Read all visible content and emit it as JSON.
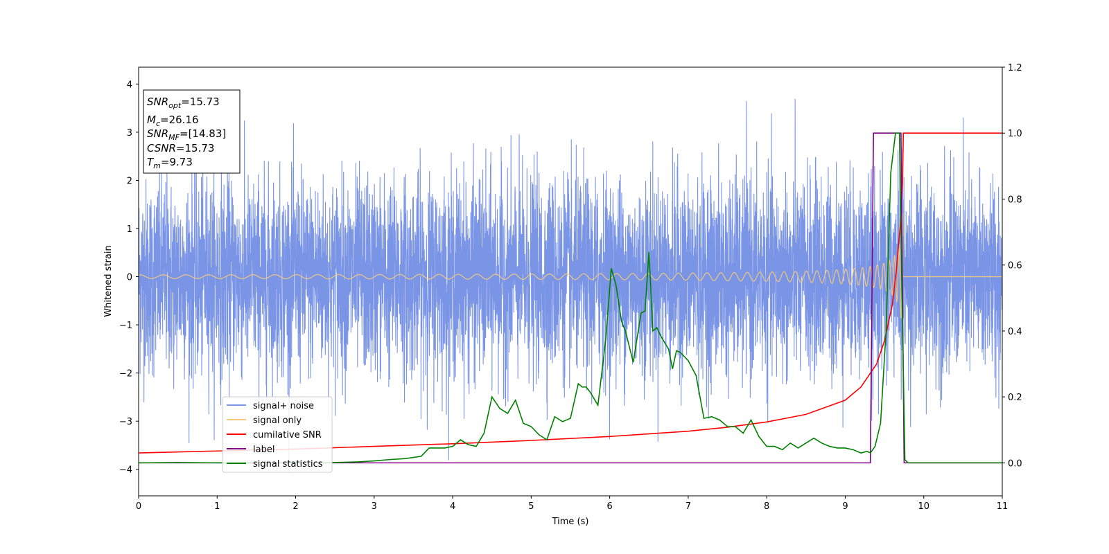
{
  "chart_data": {
    "type": "line",
    "xlabel": "Time (s)",
    "ylabel": "Whitened strain",
    "xlim": [
      0,
      11
    ],
    "ylim": [
      -4.55,
      4.35
    ],
    "y2lim": [
      -0.1,
      1.2
    ],
    "x_ticks": [
      0,
      1,
      2,
      3,
      4,
      5,
      6,
      7,
      8,
      9,
      10,
      11
    ],
    "y_ticks": [
      -4,
      -3,
      -2,
      -1,
      0,
      1,
      2,
      3,
      4
    ],
    "y2_ticks": [
      0.0,
      0.2,
      0.4,
      0.6,
      0.8,
      1.0,
      1.2
    ],
    "legend_position": "lower-left",
    "info_box": {
      "snr_opt": {
        "main": "SNR",
        "sub": "opt",
        "value": "=15.73"
      },
      "mc": {
        "main": "M",
        "sub": "c",
        "value": "=26.16"
      },
      "snr_mf": {
        "main": "SNR",
        "sub": "MF",
        "value": "=[14.83]"
      },
      "csnr": {
        "main": "CSNR",
        "value": "=15.73"
      },
      "tm": {
        "main": "T",
        "sub": "m",
        "value": "=9.73"
      }
    },
    "series": [
      {
        "name": "signal+ noise",
        "color": "#7a94e6",
        "axis": "left",
        "kind": "noise",
        "noise_std": 1.0,
        "signal_added": true
      },
      {
        "name": "signal only",
        "color": "#f5c97a",
        "axis": "left",
        "kind": "chirp",
        "merger_time": 9.73,
        "peak_amplitude": 1.5
      },
      {
        "name": "cumilative SNR",
        "color": "#ff0000",
        "axis": "right",
        "kind": "line",
        "x": [
          0,
          1,
          2,
          3,
          4,
          5,
          6,
          7,
          7.5,
          8,
          8.5,
          9,
          9.2,
          9.4,
          9.5,
          9.6,
          9.65,
          9.7,
          9.73,
          9.74,
          11
        ],
        "y": [
          0.03,
          0.036,
          0.042,
          0.05,
          0.058,
          0.068,
          0.08,
          0.096,
          0.108,
          0.124,
          0.147,
          0.19,
          0.23,
          0.3,
          0.37,
          0.48,
          0.58,
          0.72,
          0.85,
          1.0,
          1.0
        ]
      },
      {
        "name": "label",
        "color": "#800080",
        "axis": "right",
        "kind": "line",
        "x": [
          0,
          9.32,
          9.36,
          9.71,
          9.75,
          11
        ],
        "y": [
          0,
          0,
          1,
          1,
          0,
          0
        ]
      },
      {
        "name": "signal statistics",
        "color": "#008000",
        "axis": "right",
        "kind": "line",
        "x": [
          0,
          0.5,
          1,
          1.5,
          2,
          2.5,
          2.8,
          3,
          3.2,
          3.4,
          3.6,
          3.7,
          3.9,
          4,
          4.1,
          4.2,
          4.3,
          4.4,
          4.5,
          4.6,
          4.7,
          4.8,
          4.9,
          5,
          5.1,
          5.2,
          5.3,
          5.4,
          5.5,
          5.6,
          5.65,
          5.7,
          5.75,
          5.85,
          5.95,
          6.02,
          6.08,
          6.15,
          6.2,
          6.3,
          6.4,
          6.45,
          6.5,
          6.55,
          6.6,
          6.65,
          6.75,
          6.8,
          6.85,
          6.9,
          7,
          7.1,
          7.2,
          7.3,
          7.4,
          7.5,
          7.6,
          7.7,
          7.8,
          7.9,
          8,
          8.1,
          8.2,
          8.3,
          8.4,
          8.5,
          8.6,
          8.7,
          8.8,
          8.9,
          9,
          9.1,
          9.2,
          9.28,
          9.32,
          9.38,
          9.45,
          9.52,
          9.58,
          9.64,
          9.69,
          9.72,
          9.76,
          9.8,
          11
        ],
        "y": [
          0.0,
          0.001,
          0.0,
          0.001,
          0.0,
          0.001,
          0.003,
          0.006,
          0.01,
          0.013,
          0.02,
          0.045,
          0.045,
          0.05,
          0.07,
          0.055,
          0.05,
          0.09,
          0.2,
          0.165,
          0.15,
          0.19,
          0.12,
          0.11,
          0.085,
          0.07,
          0.14,
          0.125,
          0.135,
          0.24,
          0.23,
          0.23,
          0.215,
          0.175,
          0.375,
          0.59,
          0.54,
          0.43,
          0.4,
          0.305,
          0.455,
          0.46,
          0.64,
          0.4,
          0.41,
          0.385,
          0.345,
          0.285,
          0.34,
          0.335,
          0.31,
          0.265,
          0.135,
          0.14,
          0.13,
          0.11,
          0.11,
          0.09,
          0.13,
          0.08,
          0.05,
          0.05,
          0.04,
          0.06,
          0.045,
          0.06,
          0.075,
          0.06,
          0.05,
          0.045,
          0.045,
          0.04,
          0.03,
          0.035,
          0.03,
          0.05,
          0.12,
          0.4,
          0.88,
          1.0,
          1.0,
          0.55,
          0.01,
          0.0,
          0.0
        ]
      }
    ]
  }
}
